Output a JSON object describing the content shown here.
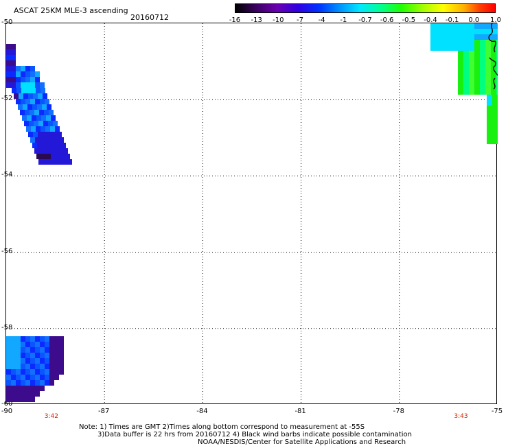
{
  "header": {
    "title": "ASCAT 25KM MLE-3 ascending",
    "date": "20160712"
  },
  "colorbar": {
    "labels": [
      "-16",
      "-13",
      "-10",
      "-7",
      "-4",
      "-1",
      "-0.7",
      "-0.6",
      "-0.5",
      "-0.4",
      "-0.1",
      "0.0",
      "1.0"
    ]
  },
  "axes": {
    "y_ticks": [
      "-50",
      "-52",
      "-54",
      "-56",
      "-58",
      "-60"
    ],
    "x_ticks": [
      "-90",
      "-87",
      "-84",
      "-81",
      "-78",
      "-75"
    ],
    "x_range": [
      -90,
      -75
    ],
    "y_range": [
      -60,
      -50
    ]
  },
  "pass_times": [
    {
      "label": "3:42",
      "lon": -88.6
    },
    {
      "label": "3:43",
      "lon": -76.1
    }
  ],
  "notes": [
    "Note: 1) Times are GMT 2)Times along bottom correspond to measurement at -55S",
    "3)Data buffer is 22 hrs from 20160712 4) Black wind barbs indicate possible contamination",
    "NOAA/NESDIS/Center for Satellite Applications and Research"
  ],
  "colors": {
    "grid": "#000000",
    "time_label": "#d02000"
  }
}
